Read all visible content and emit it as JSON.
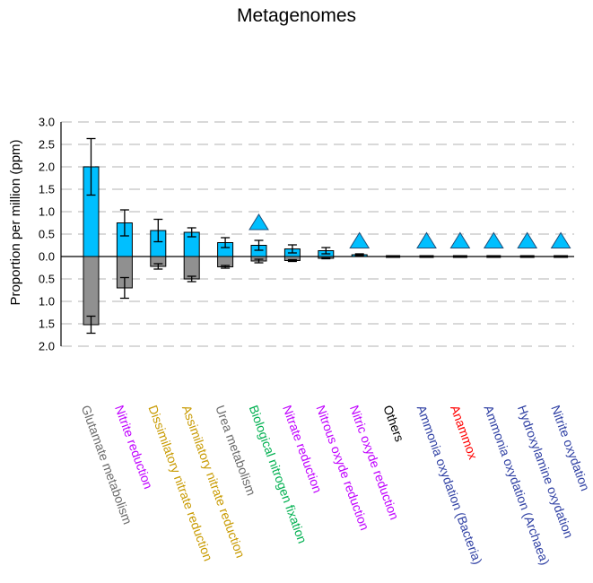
{
  "chart_data": {
    "type": "bar",
    "title": "Metagenomes",
    "ylabel": "Proportion per million (ppm)",
    "xlabel": "",
    "ylim_top": [
      0,
      3.0
    ],
    "ylim_bottom": [
      0,
      2.0
    ],
    "ticks_top": [
      "3.0",
      "2.5",
      "2.0",
      "1.5",
      "1.0",
      "0.5",
      "0.0"
    ],
    "ticks_bottom": [
      "0.5",
      "1.0",
      "1.5",
      "2.0"
    ],
    "grid": true,
    "categories": [
      "Glutamate metabolism",
      "Nitrite reduction",
      "Dissimilatory nitrate reduction",
      "Assimilatory nitrate reduction",
      "Urea metabolism",
      "Biological nitrogen fixation",
      "Nitrate reduction",
      "Nitrous oxyde reduction",
      "Nitric oxyde reduction",
      "Others",
      "Ammonia oxydation (Bacteria)",
      "Anammox",
      "Ammonia oxydation (Archaea)",
      "Hydroxylamine oxydation",
      "Nitrite oxydation"
    ],
    "category_colors": [
      "#6b6b6b",
      "#c000ff",
      "#c89a00",
      "#c89a00",
      "#6b6b6b",
      "#00b050",
      "#c000ff",
      "#c000ff",
      "#c000ff",
      "#000000",
      "#2e3fa3",
      "#ff0000",
      "#2e3fa3",
      "#2e3fa3",
      "#2e3fa3"
    ],
    "series": [
      {
        "color": "#00bfff",
        "values": [
          2.0,
          0.75,
          0.58,
          0.54,
          0.31,
          0.25,
          0.17,
          0.13,
          0.04,
          0.0,
          0.0,
          0.0,
          0.0,
          0.0,
          0.0
        ],
        "error": [
          0.63,
          0.29,
          0.25,
          0.1,
          0.11,
          0.11,
          0.09,
          0.07,
          0.02,
          0.0,
          0.0,
          0.0,
          0.0,
          0.0,
          0.0
        ]
      },
      {
        "color": "#909090",
        "values": [
          1.52,
          0.7,
          0.22,
          0.5,
          0.23,
          0.1,
          0.09,
          0.04,
          0.0,
          0.0,
          0.0,
          0.0,
          0.0,
          0.0,
          0.0
        ],
        "error": [
          0.19,
          0.23,
          0.06,
          0.06,
          0.03,
          0.04,
          0.02,
          0.01,
          0.0,
          0.0,
          0.0,
          0.0,
          0.0,
          0.0,
          0.0
        ]
      }
    ],
    "markers": {
      "shape": "triangle",
      "color": "#00bfff",
      "points": [
        {
          "category": "Biological nitrogen fixation",
          "value": 0.77
        },
        {
          "category": "Nitric oxyde reduction",
          "value": 0.36
        },
        {
          "category": "Ammonia oxydation (Bacteria)",
          "value": 0.36
        },
        {
          "category": "Anammox",
          "value": 0.36
        },
        {
          "category": "Ammonia oxydation (Archaea)",
          "value": 0.36
        },
        {
          "category": "Hydroxylamine oxydation",
          "value": 0.36
        },
        {
          "category": "Nitrite oxydation",
          "value": 0.36
        }
      ]
    }
  }
}
